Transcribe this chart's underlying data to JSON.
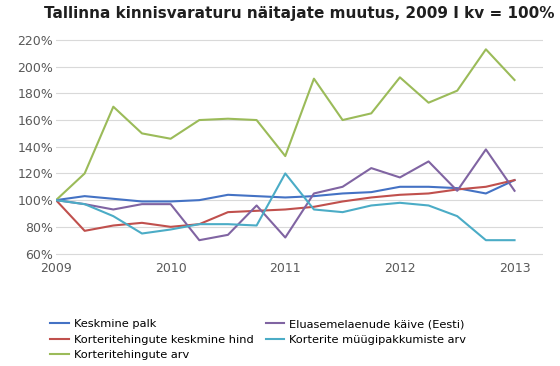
{
  "title": "Tallinna kinnisvaraturu näitajate muutus, 2009 I kv = 100%",
  "background_color": "#ffffff",
  "plot_bg_color": "#ffffff",
  "xticks": [
    2009,
    2010,
    2011,
    2012,
    2013
  ],
  "yticks": [
    0.6,
    0.8,
    1.0,
    1.2,
    1.4,
    1.6,
    1.8,
    2.0,
    2.2
  ],
  "x": [
    2009.0,
    2009.25,
    2009.5,
    2009.75,
    2010.0,
    2010.25,
    2010.5,
    2010.75,
    2011.0,
    2011.25,
    2011.5,
    2011.75,
    2012.0,
    2012.25,
    2012.5,
    2012.75,
    2013.0
  ],
  "keskmine_palk": [
    1.0,
    1.03,
    1.01,
    0.99,
    0.99,
    1.0,
    1.04,
    1.03,
    1.02,
    1.03,
    1.05,
    1.06,
    1.1,
    1.1,
    1.09,
    1.05,
    1.15
  ],
  "korterihinnad": [
    1.0,
    0.77,
    0.81,
    0.83,
    0.8,
    0.82,
    0.91,
    0.92,
    0.93,
    0.95,
    0.99,
    1.02,
    1.04,
    1.05,
    1.08,
    1.1,
    1.15
  ],
  "tehingute_arv": [
    1.0,
    1.2,
    1.7,
    1.5,
    1.46,
    1.6,
    1.61,
    1.6,
    1.33,
    1.91,
    1.6,
    1.65,
    1.92,
    1.73,
    1.82,
    2.13,
    1.9
  ],
  "eluasemelaenud": [
    1.0,
    0.97,
    0.93,
    0.97,
    0.97,
    0.7,
    0.74,
    0.96,
    0.72,
    1.05,
    1.1,
    1.24,
    1.17,
    1.29,
    1.07,
    1.38,
    1.07
  ],
  "myygipakkumised": [
    1.0,
    0.97,
    0.88,
    0.75,
    0.78,
    0.82,
    0.82,
    0.81,
    1.2,
    0.93,
    0.91,
    0.96,
    0.98,
    0.96,
    0.88,
    0.7,
    0.7
  ],
  "colors": {
    "keskmine_palk": "#4472c4",
    "korterihinnad": "#c0504d",
    "tehingute_arv": "#9bbb59",
    "eluasemelaenud": "#8064a2",
    "myygipakkumised": "#4bacc6"
  },
  "legend": [
    "Keskmine palk",
    "Korteritehingute keskmine hind",
    "Korteritehingute arv",
    "Eluasemelaenude käive (Eesti)",
    "Korterite müügipakkumiste arv"
  ],
  "xlim": [
    2009.0,
    2013.25
  ],
  "ylim": [
    0.58,
    2.28
  ]
}
